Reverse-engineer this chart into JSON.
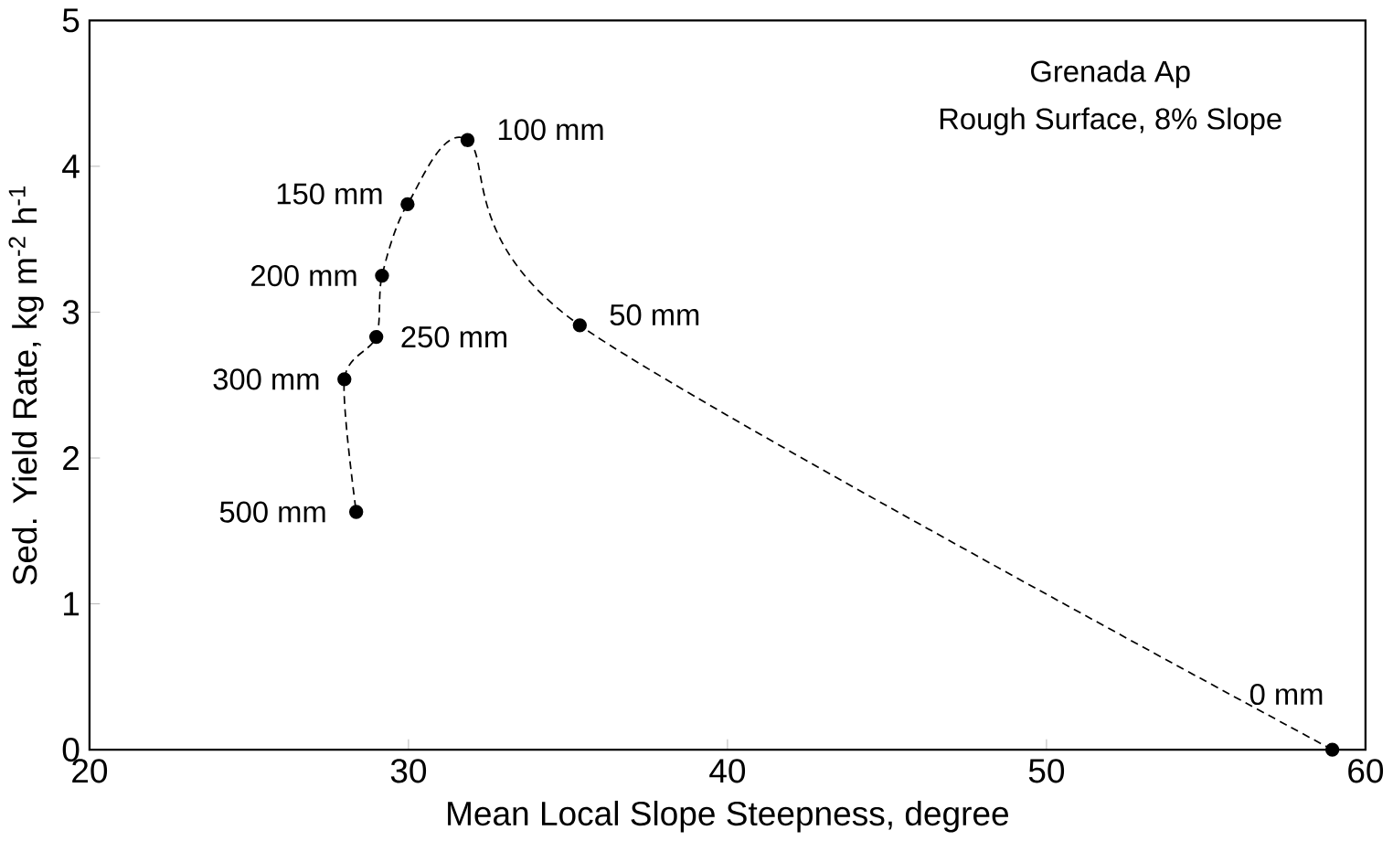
{
  "chart_data": {
    "type": "line",
    "xlabel": "Mean Local Slope Steepness, degree",
    "ylabel": "Sed. Yield Rate, kg m$^{-2}$ h$^{-1}$",
    "x": [
      58.96,
      35.37,
      31.85,
      29.97,
      29.17,
      28.99,
      27.99,
      28.36
    ],
    "series": [
      {
        "color": "#000000",
        "values": [
          0,
          2.91,
          4.18,
          3.74,
          3.25,
          2.83,
          2.54,
          1.63
        ]
      }
    ],
    "marker": "circle",
    "line_style": "dashed",
    "xlim": [
      20,
      60
    ],
    "ylim": [
      0,
      5
    ],
    "xticks": [
      20,
      30,
      40,
      50,
      60
    ],
    "yticks": [
      0,
      1,
      2,
      3,
      4,
      5
    ],
    "annotations": [
      {
        "text": "0 mm",
        "x": 58.96,
        "y": 0
      },
      {
        "text": "50 mm",
        "x": 35.37,
        "y": 2.91
      },
      {
        "text": "100 mm",
        "x": 31.85,
        "y": 4.18
      },
      {
        "text": "150 mm",
        "x": 29.97,
        "y": 3.74
      },
      {
        "text": "200 mm",
        "x": 29.17,
        "y": 3.25
      },
      {
        "text": "250 mm",
        "x": 28.99,
        "y": 2.83
      },
      {
        "text": "300 mm",
        "x": 27.99,
        "y": 2.54
      },
      {
        "text": "500 mm",
        "x": 28.36,
        "y": 1.63
      },
      "Grenada Ap",
      "Rough Surface, 8% Slope"
    ]
  }
}
